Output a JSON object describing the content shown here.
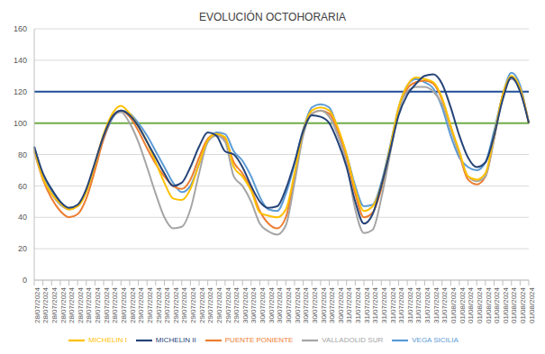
{
  "chart_data": {
    "type": "line",
    "title": "EVOLUCIÓN OCTOHORARIA",
    "categories": [
      "28/07/2024",
      "28/07/2024",
      "28/07/2024",
      "28/07/2024",
      "28/07/2024",
      "28/07/2024",
      "28/07/2024",
      "28/07/2024",
      "28/07/2024",
      "28/07/2024",
      "28/07/2024",
      "28/07/2024",
      "29/07/2024",
      "29/07/2024",
      "29/07/2024",
      "29/07/2024",
      "29/07/2024",
      "29/07/2024",
      "29/07/2024",
      "29/07/2024",
      "29/07/2024",
      "29/07/2024",
      "29/07/2024",
      "29/07/2024",
      "30/07/2024",
      "30/07/2024",
      "30/07/2024",
      "30/07/2024",
      "30/07/2024",
      "30/07/2024",
      "30/07/2024",
      "30/07/2024",
      "30/07/2024",
      "30/07/2024",
      "30/07/2024",
      "30/07/2024",
      "31/07/2024",
      "31/07/2024",
      "31/07/2024",
      "31/07/2024",
      "31/07/2024",
      "31/07/2024",
      "31/07/2024",
      "31/07/2024",
      "31/07/2024",
      "31/07/2024",
      "31/07/2024",
      "31/07/2024",
      "01/08/2024",
      "01/08/2024",
      "01/08/2024",
      "01/08/2024",
      "01/08/2024",
      "01/08/2024",
      "01/08/2024",
      "01/08/2024",
      "01/08/2024",
      "01/08/2024"
    ],
    "series": [
      {
        "name": "VEGA SICILIA",
        "color": "#5b9bd5",
        "values": [
          85,
          66,
          57,
          50,
          46,
          47,
          57,
          73,
          90,
          103,
          108,
          106,
          100,
          92,
          82,
          72,
          62,
          56,
          60,
          74,
          88,
          94,
          93,
          82,
          76,
          66,
          53,
          45,
          44,
          55,
          74,
          96,
          110,
          112,
          110,
          96,
          80,
          60,
          47,
          48,
          62,
          85,
          110,
          124,
          128,
          126,
          122,
          110,
          92,
          78,
          72,
          70,
          75,
          95,
          118,
          132,
          124,
          100
        ]
      },
      {
        "name": "PUENTE PONIENTE",
        "color": "#ed7d31",
        "values": [
          82,
          64,
          52,
          44,
          40,
          42,
          52,
          70,
          90,
          104,
          108,
          104,
          95,
          84,
          74,
          66,
          60,
          58,
          64,
          78,
          90,
          93,
          90,
          75,
          68,
          58,
          44,
          36,
          33,
          40,
          66,
          94,
          106,
          108,
          106,
          95,
          78,
          55,
          40,
          43,
          58,
          82,
          108,
          122,
          126,
          127,
          125,
          115,
          98,
          80,
          64,
          61,
          66,
          90,
          118,
          129,
          122,
          100
        ]
      },
      {
        "name": "VALLADOLID SUR",
        "color": "#a5a5a5",
        "values": [
          83,
          65,
          55,
          48,
          45,
          47,
          57,
          74,
          92,
          104,
          107,
          100,
          88,
          72,
          55,
          40,
          33,
          34,
          45,
          68,
          88,
          92,
          88,
          66,
          60,
          50,
          36,
          31,
          29,
          35,
          62,
          92,
          106,
          108,
          104,
          92,
          74,
          45,
          30,
          32,
          52,
          80,
          108,
          120,
          123,
          123,
          120,
          112,
          96,
          80,
          66,
          63,
          66,
          90,
          118,
          128,
          121,
          100
        ]
      },
      {
        "name": "MICHELIN I",
        "color": "#ffc000",
        "values": [
          84,
          65,
          55,
          49,
          45,
          47,
          56,
          74,
          93,
          106,
          111,
          106,
          98,
          88,
          75,
          62,
          52,
          51,
          58,
          74,
          89,
          93,
          91,
          72,
          66,
          57,
          43,
          41,
          40,
          45,
          68,
          95,
          108,
          110,
          108,
          97,
          80,
          58,
          44,
          47,
          60,
          84,
          110,
          124,
          129,
          128,
          126,
          116,
          98,
          82,
          66,
          64,
          68,
          92,
          118,
          130,
          122,
          100
        ]
      },
      {
        "name": "MICHELIN II",
        "color": "#264478",
        "values": [
          85,
          68,
          58,
          50,
          46,
          48,
          58,
          75,
          92,
          104,
          108,
          105,
          98,
          88,
          78,
          68,
          60,
          62,
          72,
          85,
          94,
          92,
          82,
          80,
          72,
          60,
          50,
          46,
          47,
          58,
          75,
          95,
          105,
          104,
          100,
          88,
          72,
          50,
          36,
          42,
          60,
          82,
          105,
          118,
          125,
          130,
          131,
          125,
          110,
          92,
          78,
          72,
          75,
          92,
          115,
          129,
          120,
          100
        ]
      }
    ],
    "reference_lines": [
      {
        "value": 120,
        "color": "#1f4e99"
      },
      {
        "value": 100,
        "color": "#70ad47"
      }
    ],
    "ylim": [
      0,
      160
    ],
    "yticks": [
      0,
      20,
      40,
      60,
      80,
      100,
      120,
      140,
      160
    ],
    "grid": true,
    "legend": "bottom"
  }
}
